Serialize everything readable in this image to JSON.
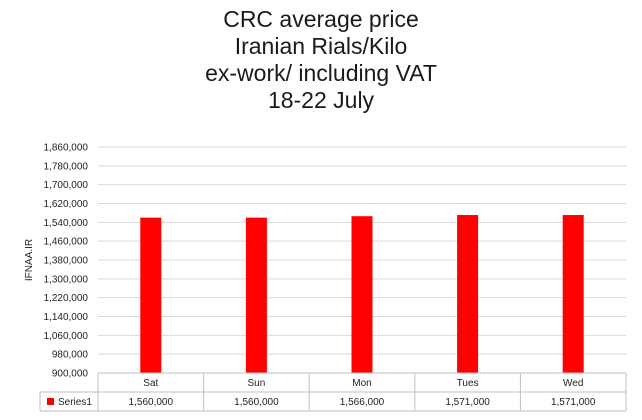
{
  "chart_data": {
    "type": "bar",
    "title_lines": [
      "CRC average price",
      "Iranian Rials/Kilo",
      "ex-work/ including VAT",
      "18-22  July"
    ],
    "ylabel": "IFNAA.IR",
    "xlabel": "",
    "categories": [
      "Sat",
      "Sun",
      "Mon",
      "Tues",
      "Wed"
    ],
    "series": [
      {
        "name": "Series1",
        "values": [
          1560000,
          1560000,
          1566000,
          1571000,
          1571000
        ],
        "value_labels": [
          "1,560,000",
          "1,560,000",
          "1,566,000",
          "1,571,000",
          "1,571,000"
        ],
        "color": "#ff0000"
      }
    ],
    "ylim": [
      900000,
      1860000
    ],
    "yticks": [
      900000,
      980000,
      1060000,
      1140000,
      1220000,
      1300000,
      1380000,
      1460000,
      1540000,
      1620000,
      1700000,
      1780000,
      1860000
    ],
    "ytick_labels": [
      "900,000",
      "980,000",
      "1,060,000",
      "1,140,000",
      "1,220,000",
      "1,300,000",
      "1,380,000",
      "1,460,000",
      "1,540,000",
      "1,620,000",
      "1,700,000",
      "1,780,000",
      "1,860,000"
    ],
    "grid": true,
    "data_table": true,
    "colors": {
      "grid": "#d9d9d9",
      "border": "#bfbfbf",
      "text": "#222222"
    }
  }
}
